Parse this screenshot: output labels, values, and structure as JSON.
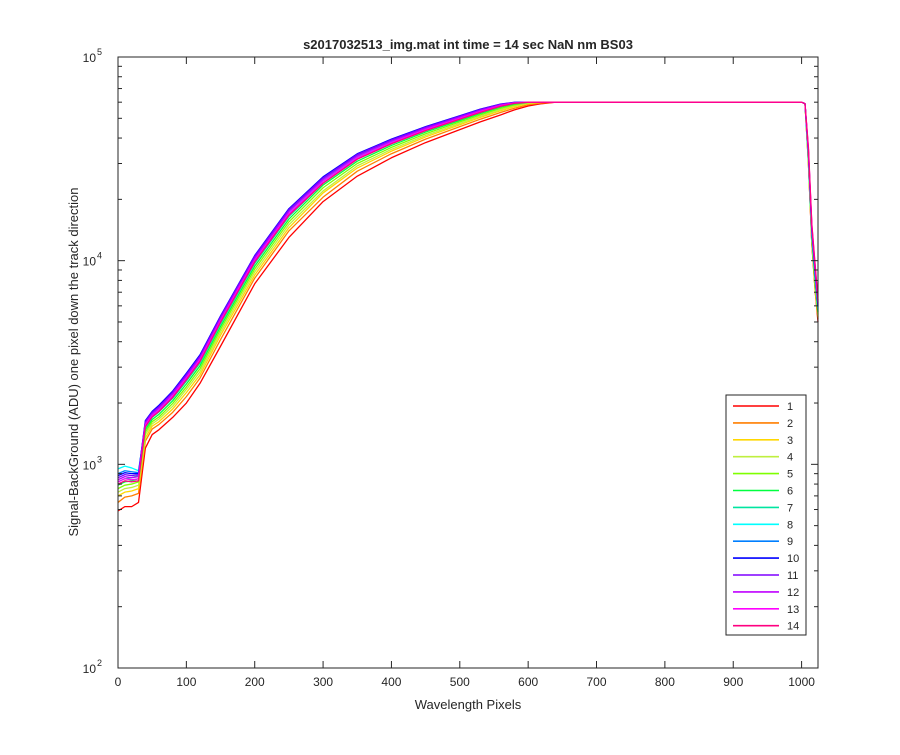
{
  "chart_data": {
    "type": "line",
    "title": "s2017032513_img.mat int time = 14 sec  NaN nm BS03",
    "xlabel": "Wavelength Pixels",
    "ylabel": "Signal-BackGround (ADU) one pixel down the track direction",
    "xlim": [
      0,
      1024
    ],
    "ylim": [
      100,
      100000
    ],
    "yscale": "log",
    "grid": false,
    "legend_position": "bottom-right",
    "x_ticks": [
      0,
      100,
      200,
      300,
      400,
      500,
      600,
      700,
      800,
      900,
      1000
    ],
    "x_tick_labels": [
      "0",
      "100",
      "200",
      "300",
      "400",
      "500",
      "600",
      "700",
      "800",
      "900",
      "1000"
    ],
    "y_ticks": [
      100,
      1000,
      10000,
      100000
    ],
    "y_tick_labels": [
      {
        "base": "10",
        "exp": "2"
      },
      {
        "base": "10",
        "exp": "3"
      },
      {
        "base": "10",
        "exp": "4"
      },
      {
        "base": "10",
        "exp": "5"
      }
    ],
    "x": [
      0,
      10,
      20,
      30,
      40,
      50,
      60,
      80,
      100,
      120,
      150,
      200,
      250,
      300,
      350,
      400,
      450,
      500,
      530,
      560,
      580,
      600,
      620,
      640,
      700,
      800,
      900,
      1000,
      1005,
      1010,
      1015,
      1020,
      1024
    ],
    "series": [
      {
        "name": "1",
        "color": "#ff0000",
        "values": [
          590,
          620,
          620,
          650,
          1200,
          1400,
          1480,
          1700,
          2000,
          2500,
          3800,
          7700,
          13000,
          19500,
          26000,
          32000,
          38000,
          44000,
          48000,
          52000,
          55000,
          57500,
          59000,
          60000,
          60000,
          60000,
          60000,
          60000,
          59000,
          30000,
          12000,
          7000,
          5000
        ]
      },
      {
        "name": "2",
        "color": "#ff7f00",
        "values": [
          650,
          690,
          700,
          720,
          1300,
          1490,
          1570,
          1800,
          2150,
          2650,
          4100,
          8200,
          14000,
          20500,
          27500,
          33500,
          39500,
          45500,
          49500,
          53500,
          56000,
          58300,
          59500,
          60000,
          60000,
          60000,
          60000,
          60000,
          59000,
          30000,
          12000,
          7000,
          5200
        ]
      },
      {
        "name": "3",
        "color": "#ffd700",
        "values": [
          700,
          730,
          740,
          760,
          1350,
          1540,
          1620,
          1870,
          2250,
          2750,
          4300,
          8500,
          14500,
          21500,
          28500,
          34500,
          40500,
          46500,
          50500,
          54500,
          57000,
          59000,
          60000,
          60000,
          60000,
          60000,
          60000,
          60000,
          59000,
          30000,
          12500,
          7200,
          5300
        ]
      },
      {
        "name": "4",
        "color": "#bfef3f",
        "values": [
          730,
          760,
          770,
          790,
          1400,
          1580,
          1670,
          1930,
          2330,
          2850,
          4450,
          8800,
          15000,
          22000,
          29200,
          35200,
          41200,
          47200,
          51200,
          55200,
          57600,
          59400,
          60000,
          60000,
          60000,
          60000,
          60000,
          60000,
          59000,
          31000,
          12500,
          7400,
          5400
        ]
      },
      {
        "name": "5",
        "color": "#7fff00",
        "values": [
          760,
          790,
          800,
          820,
          1440,
          1620,
          1710,
          1990,
          2400,
          2950,
          4600,
          9100,
          15500,
          22800,
          30000,
          36000,
          42000,
          48000,
          52000,
          56000,
          58200,
          59800,
          60000,
          60000,
          60000,
          60000,
          60000,
          60000,
          59000,
          31000,
          13000,
          7600,
          5500
        ]
      },
      {
        "name": "6",
        "color": "#00ff3f",
        "values": [
          790,
          820,
          830,
          850,
          1480,
          1660,
          1760,
          2050,
          2480,
          3050,
          4750,
          9400,
          16000,
          23500,
          30800,
          36800,
          42800,
          48800,
          52800,
          56800,
          58800,
          60000,
          60000,
          60000,
          60000,
          60000,
          60000,
          60000,
          59000,
          32000,
          13000,
          7800,
          5600
        ]
      },
      {
        "name": "7",
        "color": "#00e5a0",
        "values": [
          820,
          850,
          860,
          880,
          1520,
          1700,
          1810,
          2110,
          2560,
          3150,
          4900,
          9700,
          16500,
          24000,
          31500,
          37500,
          43500,
          49500,
          53500,
          57400,
          59200,
          60000,
          60000,
          60000,
          60000,
          60000,
          60000,
          60000,
          59000,
          32000,
          13500,
          8000,
          5700
        ]
      },
      {
        "name": "8",
        "color": "#00ffff",
        "values": [
          950,
          980,
          960,
          930,
          1560,
          1740,
          1860,
          2170,
          2640,
          3250,
          5050,
          10000,
          17000,
          24600,
          32200,
          38200,
          44200,
          50200,
          54200,
          58000,
          59500,
          60000,
          60000,
          60000,
          60000,
          60000,
          60000,
          60000,
          59000,
          33000,
          13500,
          8200,
          5800
        ]
      },
      {
        "name": "9",
        "color": "#007fff",
        "values": [
          900,
          930,
          920,
          910,
          1600,
          1780,
          1900,
          2230,
          2720,
          3350,
          5200,
          10300,
          17500,
          25200,
          32800,
          38800,
          44800,
          50800,
          54800,
          58400,
          59700,
          60000,
          60000,
          60000,
          60000,
          60000,
          60000,
          60000,
          59000,
          33000,
          14000,
          8400,
          5900
        ]
      },
      {
        "name": "10",
        "color": "#0000ff",
        "values": [
          880,
          910,
          900,
          900,
          1640,
          1820,
          1950,
          2290,
          2800,
          3450,
          5350,
          10600,
          18000,
          25800,
          33500,
          39500,
          45500,
          51500,
          55500,
          58800,
          59900,
          60000,
          60000,
          60000,
          60000,
          60000,
          60000,
          60000,
          59000,
          34000,
          14000,
          8600,
          6000
        ]
      },
      {
        "name": "11",
        "color": "#7f00ff",
        "values": [
          860,
          890,
          880,
          890,
          1620,
          1800,
          1920,
          2260,
          2760,
          3400,
          5300,
          10500,
          17800,
          25500,
          33200,
          39200,
          45200,
          51200,
          55200,
          58600,
          59800,
          60000,
          60000,
          60000,
          60000,
          60000,
          60000,
          60000,
          59000,
          34000,
          14500,
          8800,
          6100
        ]
      },
      {
        "name": "12",
        "color": "#bf00ff",
        "values": [
          840,
          870,
          860,
          870,
          1590,
          1770,
          1890,
          2220,
          2700,
          3330,
          5180,
          10250,
          17400,
          25000,
          32600,
          38600,
          44600,
          50600,
          54600,
          58200,
          59600,
          60000,
          60000,
          60000,
          60000,
          60000,
          60000,
          60000,
          59000,
          35000,
          14500,
          9000,
          6200
        ]
      },
      {
        "name": "13",
        "color": "#ff00ff",
        "values": [
          820,
          850,
          840,
          850,
          1560,
          1740,
          1850,
          2170,
          2650,
          3270,
          5080,
          10050,
          17000,
          24500,
          32000,
          38000,
          44000,
          50000,
          54000,
          57800,
          59400,
          60000,
          60000,
          60000,
          60000,
          60000,
          60000,
          60000,
          59000,
          35000,
          15000,
          9200,
          6300
        ]
      },
      {
        "name": "14",
        "color": "#ff0080",
        "values": [
          800,
          830,
          820,
          830,
          1530,
          1710,
          1820,
          2130,
          2600,
          3200,
          4980,
          9850,
          16700,
          24000,
          31500,
          37500,
          43500,
          49500,
          53500,
          57300,
          59200,
          60000,
          60000,
          60000,
          60000,
          60000,
          60000,
          60000,
          59000,
          36000,
          15000,
          9400,
          6400
        ]
      }
    ]
  }
}
